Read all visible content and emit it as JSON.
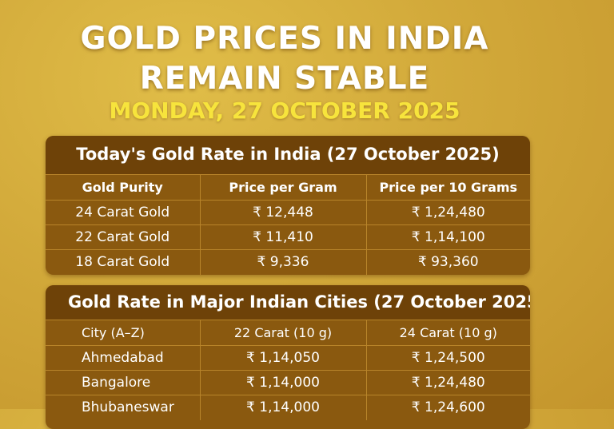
{
  "headline": {
    "line1": "GOLD PRICES IN INDIA",
    "line2": "REMAIN STABLE",
    "date": "MONDAY, 27 OCTOBER 2025"
  },
  "table1": {
    "title": "Today's Gold Rate in India (27 October 2025)",
    "headers": [
      "Gold Purity",
      "Price per Gram",
      "Price per 10 Grams"
    ],
    "rows": [
      [
        "24 Carat Gold",
        "₹ 12,448",
        "₹ 1,24,480"
      ],
      [
        "22 Carat Gold",
        "₹ 11,410",
        "₹ 1,14,100"
      ],
      [
        "18 Carat Gold",
        "₹ 9,336",
        "₹ 93,360"
      ]
    ]
  },
  "table2": {
    "title": "Gold Rate in Major Indian Cities (27 October 2025",
    "headers": [
      "City (A–Z)",
      "22 Carat (10 g)",
      "24 Carat (10 g)"
    ],
    "rows": [
      [
        "Ahmedabad",
        "₹ 1,14,050",
        "₹ 1,24,500"
      ],
      [
        "Bangalore",
        "₹ 1,14,000",
        "₹ 1,24,480"
      ],
      [
        "Bhubaneswar",
        "₹ 1,14,000",
        "₹ 1,24,600"
      ]
    ]
  }
}
